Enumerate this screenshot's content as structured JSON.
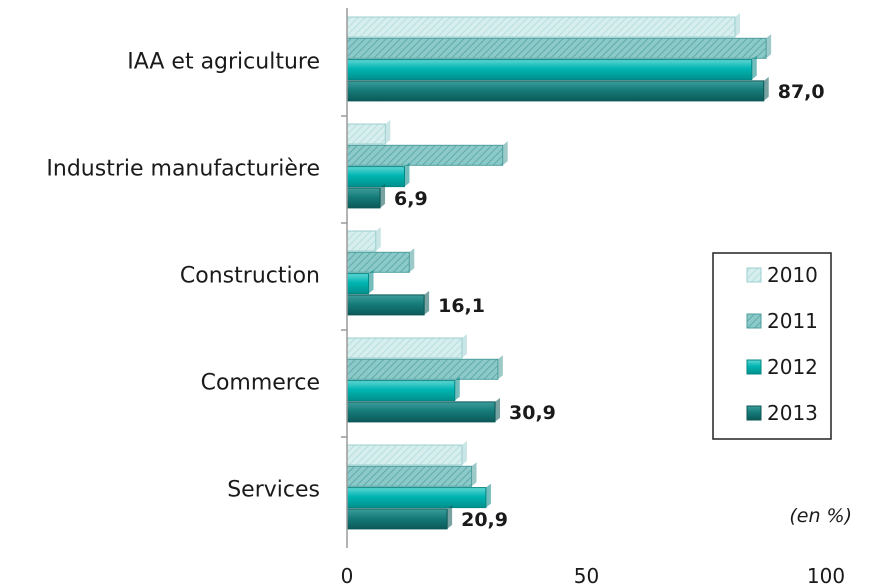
{
  "chart_data": {
    "type": "bar",
    "orientation": "horizontal",
    "categories": [
      "IAA et agriculture",
      "Industrie manufacturière",
      "Construction",
      "Commerce",
      "Services"
    ],
    "series": [
      {
        "name": "2010",
        "values": [
          81,
          8,
          6,
          24,
          24
        ],
        "color": "#d3ecec"
      },
      {
        "name": "2011",
        "values": [
          87.5,
          32.5,
          13,
          31.5,
          26
        ],
        "color": "#7fc4c3"
      },
      {
        "name": "2012",
        "values": [
          84.5,
          12,
          4.5,
          22.5,
          29
        ],
        "color": "#00b3b0"
      },
      {
        "name": "2013",
        "values": [
          87.0,
          6.9,
          16.1,
          30.9,
          20.9
        ],
        "color": "#137a78"
      }
    ],
    "data_labels": [
      "87,0",
      "6,9",
      "16,1",
      "30,9",
      "20,9"
    ],
    "xlim": [
      0,
      100
    ],
    "xticks": [
      0,
      50,
      100
    ],
    "xtick_labels": [
      "0",
      "50",
      "100"
    ],
    "unit_note": "(en %)",
    "legend_position": "right",
    "grid": false
  }
}
